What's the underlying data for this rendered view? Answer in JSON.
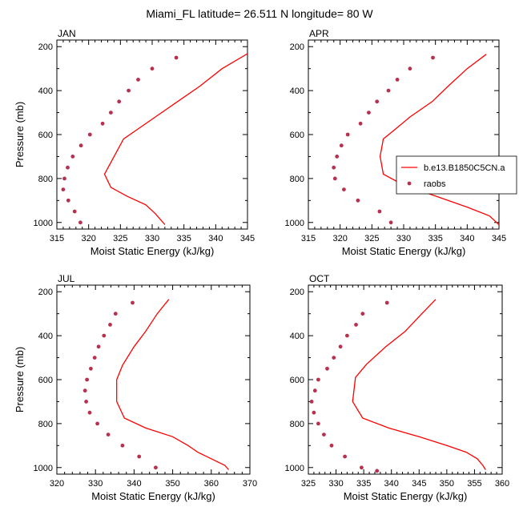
{
  "title": "Miami_FL  latitude= 26.511 N longitude= 80 W",
  "legend": {
    "model_label": "b.e13.B1850C5CN.a",
    "obs_label": "raobs",
    "model_color": "#ff0000",
    "obs_color": "#b8304e"
  },
  "chart_data": [
    {
      "type": "line",
      "panel": "JAN",
      "title": "JAN",
      "xlabel": "Moist Static Energy (kJ/kg)",
      "ylabel": "Pressure (mb)",
      "xlim": [
        315,
        345
      ],
      "ylim": [
        1000,
        200
      ],
      "xticks": [
        315,
        320,
        325,
        330,
        335,
        340,
        345
      ],
      "yticks": [
        200,
        400,
        600,
        800,
        1000
      ],
      "series": [
        {
          "name": "b.e13.B1850C5CN.a",
          "kind": "line",
          "points": [
            [
              345.0,
              232
            ],
            [
              341.0,
              300
            ],
            [
              337.5,
              380
            ],
            [
              334.0,
              450
            ],
            [
              330.5,
              520
            ],
            [
              327.5,
              580
            ],
            [
              325.5,
              620
            ],
            [
              324.0,
              700
            ],
            [
              322.5,
              780
            ],
            [
              323.5,
              840
            ],
            [
              326.0,
              880
            ],
            [
              329.0,
              920
            ],
            [
              330.5,
              960
            ],
            [
              332.0,
              1010
            ]
          ]
        },
        {
          "name": "raobs",
          "kind": "scatter",
          "points": [
            [
              333.8,
              250
            ],
            [
              330.0,
              300
            ],
            [
              327.8,
              350
            ],
            [
              326.3,
              400
            ],
            [
              324.8,
              450
            ],
            [
              323.5,
              500
            ],
            [
              322.2,
              550
            ],
            [
              320.2,
              600
            ],
            [
              318.8,
              650
            ],
            [
              317.5,
              700
            ],
            [
              316.7,
              750
            ],
            [
              316.2,
              800
            ],
            [
              316.0,
              850
            ],
            [
              316.8,
              900
            ],
            [
              317.8,
              950
            ],
            [
              318.7,
              1000
            ]
          ]
        }
      ]
    },
    {
      "type": "line",
      "panel": "APR",
      "title": "APR",
      "xlabel": "Moist Static Energy (kJ/kg)",
      "ylabel": "",
      "xlim": [
        315,
        345
      ],
      "ylim": [
        1000,
        200
      ],
      "xticks": [
        315,
        320,
        325,
        330,
        335,
        340,
        345
      ],
      "yticks": [
        200,
        400,
        600,
        800,
        1000
      ],
      "show_legend": true,
      "series": [
        {
          "name": "b.e13.B1850C5CN.a",
          "kind": "line",
          "points": [
            [
              343.0,
              235
            ],
            [
              340.0,
              300
            ],
            [
              337.0,
              380
            ],
            [
              334.5,
              450
            ],
            [
              331.0,
              520
            ],
            [
              328.5,
              580
            ],
            [
              326.8,
              620
            ],
            [
              326.3,
              700
            ],
            [
              326.8,
              780
            ],
            [
              330.0,
              830
            ],
            [
              335.0,
              880
            ],
            [
              340.0,
              930
            ],
            [
              343.5,
              970
            ],
            [
              345.0,
              1010
            ]
          ]
        },
        {
          "name": "raobs",
          "kind": "scatter",
          "points": [
            [
              334.6,
              250
            ],
            [
              331.0,
              300
            ],
            [
              329.0,
              350
            ],
            [
              327.6,
              400
            ],
            [
              325.8,
              450
            ],
            [
              324.5,
              500
            ],
            [
              323.2,
              550
            ],
            [
              321.2,
              600
            ],
            [
              320.2,
              650
            ],
            [
              319.5,
              700
            ],
            [
              319.0,
              750
            ],
            [
              319.2,
              800
            ],
            [
              320.6,
              850
            ],
            [
              322.8,
              900
            ],
            [
              326.2,
              950
            ],
            [
              328.0,
              1000
            ]
          ]
        }
      ]
    },
    {
      "type": "line",
      "panel": "JUL",
      "title": "JUL",
      "xlabel": "Moist Static Energy (kJ/kg)",
      "ylabel": "Pressure (mb)",
      "xlim": [
        320,
        370
      ],
      "ylim": [
        1000,
        200
      ],
      "xticks": [
        320,
        330,
        340,
        350,
        360,
        370
      ],
      "yticks": [
        200,
        400,
        600,
        800,
        1000
      ],
      "series": [
        {
          "name": "b.e13.B1850C5CN.a",
          "kind": "line",
          "points": [
            [
              349.0,
              235
            ],
            [
              346.0,
              300
            ],
            [
              343.0,
              380
            ],
            [
              340.0,
              450
            ],
            [
              337.0,
              535
            ],
            [
              335.5,
              600
            ],
            [
              335.5,
              700
            ],
            [
              337.5,
              775
            ],
            [
              343.0,
              820
            ],
            [
              350.0,
              860
            ],
            [
              354.0,
              900
            ],
            [
              356.5,
              930
            ],
            [
              360.0,
              960
            ],
            [
              363.5,
              990
            ],
            [
              364.5,
              1010
            ]
          ]
        },
        {
          "name": "raobs",
          "kind": "scatter",
          "points": [
            [
              339.6,
              250
            ],
            [
              335.2,
              300
            ],
            [
              333.8,
              350
            ],
            [
              332.2,
              400
            ],
            [
              330.8,
              450
            ],
            [
              329.8,
              500
            ],
            [
              328.8,
              550
            ],
            [
              327.8,
              600
            ],
            [
              327.3,
              650
            ],
            [
              327.6,
              700
            ],
            [
              328.5,
              750
            ],
            [
              330.5,
              800
            ],
            [
              333.3,
              850
            ],
            [
              337.0,
              900
            ],
            [
              341.3,
              950
            ],
            [
              345.6,
              1000
            ]
          ]
        }
      ]
    },
    {
      "type": "line",
      "panel": "OCT",
      "title": "OCT",
      "xlabel": "Moist Static Energy (kJ/kg)",
      "ylabel": "",
      "xlim": [
        325,
        360
      ],
      "ylim": [
        1000,
        200
      ],
      "xticks": [
        325,
        330,
        335,
        340,
        345,
        350,
        355,
        360
      ],
      "yticks": [
        200,
        400,
        600,
        800,
        1000
      ],
      "series": [
        {
          "name": "b.e13.B1850C5CN.a",
          "kind": "line",
          "points": [
            [
              348.0,
              235
            ],
            [
              345.5,
              300
            ],
            [
              342.5,
              380
            ],
            [
              339.0,
              450
            ],
            [
              335.5,
              530
            ],
            [
              333.5,
              590
            ],
            [
              333.0,
              700
            ],
            [
              334.8,
              775
            ],
            [
              339.5,
              820
            ],
            [
              345.0,
              860
            ],
            [
              350.0,
              900
            ],
            [
              353.5,
              930
            ],
            [
              355.5,
              960
            ],
            [
              356.5,
              990
            ],
            [
              357.0,
              1010
            ]
          ]
        },
        {
          "name": "raobs",
          "kind": "scatter",
          "points": [
            [
              339.2,
              250
            ],
            [
              334.8,
              300
            ],
            [
              333.6,
              350
            ],
            [
              332.0,
              400
            ],
            [
              330.8,
              450
            ],
            [
              329.6,
              500
            ],
            [
              328.4,
              550
            ],
            [
              326.8,
              600
            ],
            [
              326.2,
              650
            ],
            [
              325.6,
              700
            ],
            [
              326.0,
              750
            ],
            [
              326.8,
              800
            ],
            [
              327.8,
              850
            ],
            [
              329.2,
              900
            ],
            [
              331.6,
              950
            ],
            [
              334.6,
              1000
            ],
            [
              337.4,
              1015
            ]
          ]
        }
      ]
    }
  ]
}
